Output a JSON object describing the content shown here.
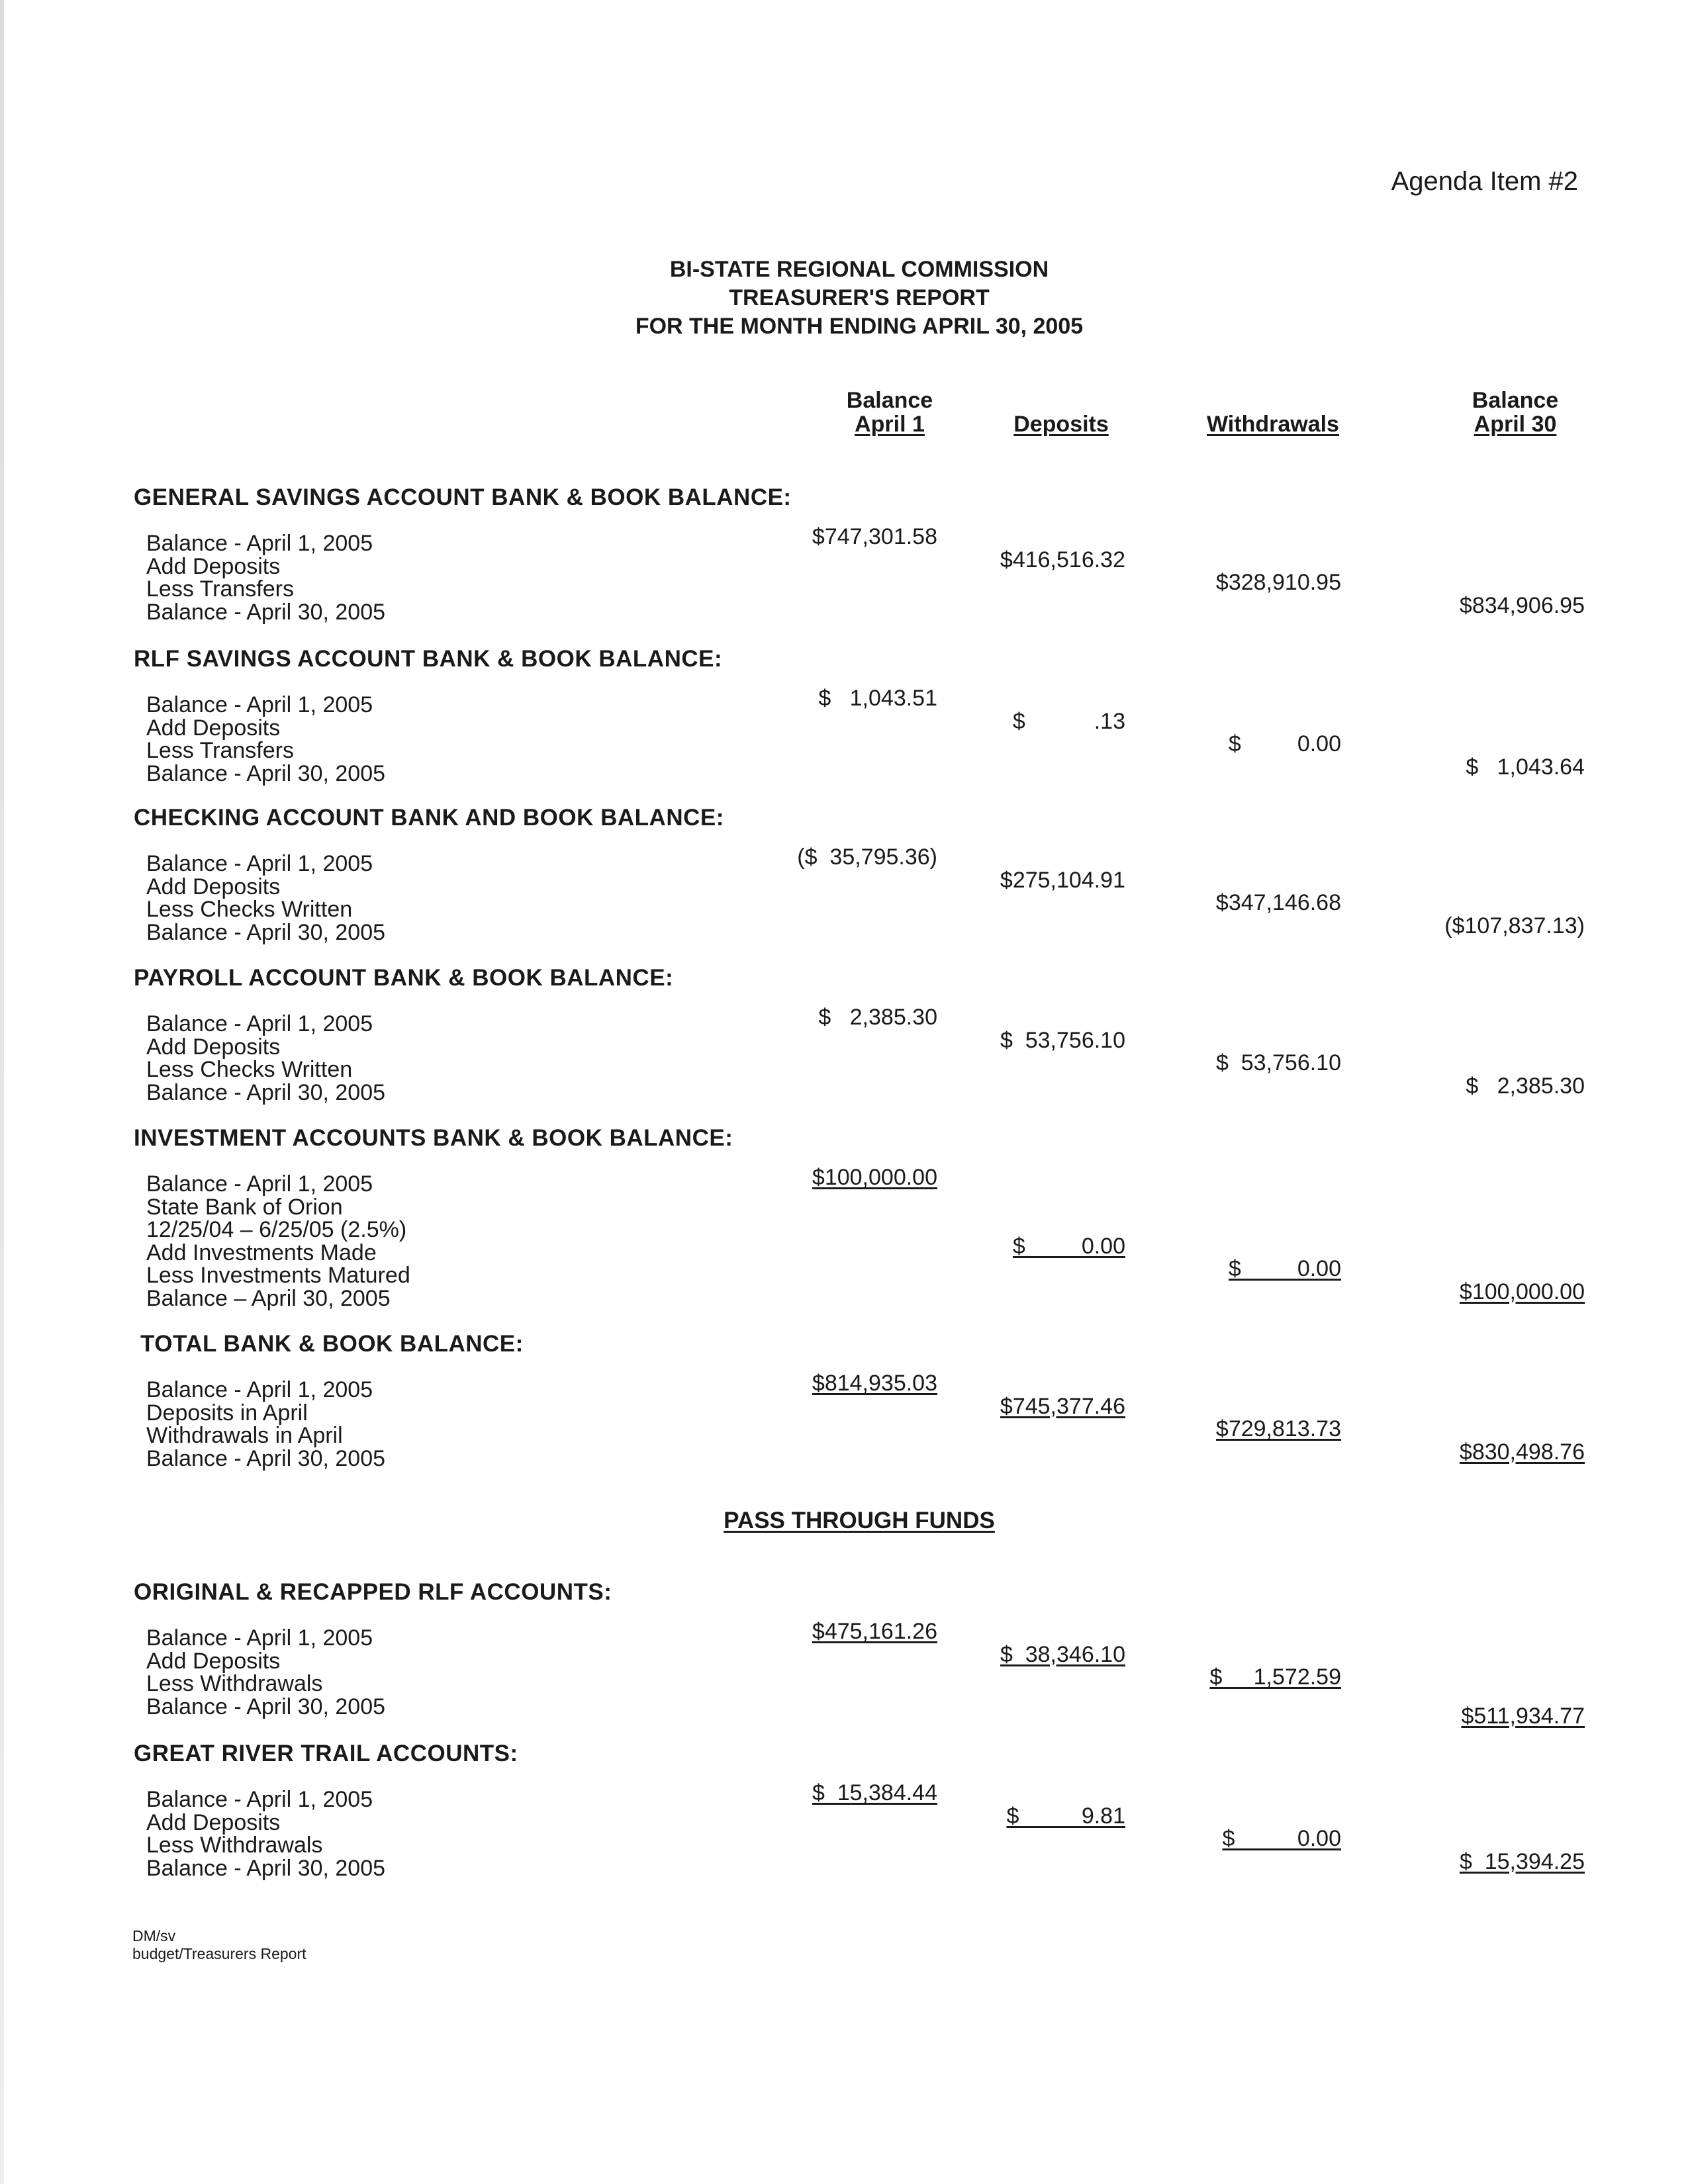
{
  "agenda_item": "Agenda Item #2",
  "title_lines": [
    "BI-STATE REGIONAL COMMISSION",
    "TREASURER'S REPORT",
    "FOR THE MONTH ENDING APRIL 30, 2005"
  ],
  "columns": [
    {
      "line1": "Balance",
      "line2": "April 1"
    },
    {
      "line1": "",
      "line2": "Deposits"
    },
    {
      "line1": "",
      "line2": "Withdrawals"
    },
    {
      "line1": "Balance",
      "line2": "April 30"
    }
  ],
  "sections": [
    {
      "heading": "GENERAL SAVINGS ACCOUNT BANK & BOOK BALANCE:",
      "lines": [
        "Balance - April 1, 2005",
        "Add Deposits",
        "Less Transfers",
        "Balance - April 30, 2005"
      ],
      "values": [
        {
          "text": "$747,301.58",
          "underline": false
        },
        {
          "text": "$416,516.32",
          "underline": false
        },
        {
          "text": "$328,910.95",
          "underline": false
        },
        {
          "text": "$834,906.95",
          "underline": false
        }
      ]
    },
    {
      "heading": "RLF SAVINGS ACCOUNT BANK & BOOK BALANCE:",
      "lines": [
        "Balance - April 1, 2005",
        "Add Deposits",
        "Less Transfers",
        "Balance - April 30, 2005"
      ],
      "values": [
        {
          "text": "$   1,043.51",
          "underline": false
        },
        {
          "text": "$           .13",
          "underline": false
        },
        {
          "text": "$         0.00",
          "underline": false
        },
        {
          "text": "$   1,043.64",
          "underline": false
        }
      ]
    },
    {
      "heading": "CHECKING ACCOUNT BANK AND BOOK BALANCE:",
      "lines": [
        "Balance - April 1, 2005",
        "Add Deposits",
        "Less Checks Written",
        "Balance - April 30, 2005"
      ],
      "values": [
        {
          "text": "($  35,795.36)",
          "underline": false
        },
        {
          "text": "$275,104.91",
          "underline": false
        },
        {
          "text": "$347,146.68",
          "underline": false
        },
        {
          "text": "($107,837.13)",
          "underline": false
        }
      ]
    },
    {
      "heading": "PAYROLL ACCOUNT BANK & BOOK BALANCE:",
      "lines": [
        "Balance - April 1, 2005",
        "Add Deposits",
        "Less Checks Written",
        "Balance - April 30, 2005"
      ],
      "values": [
        {
          "text": "$   2,385.30",
          "underline": false
        },
        {
          "text": "$  53,756.10",
          "underline": false
        },
        {
          "text": "$  53,756.10",
          "underline": false
        },
        {
          "text": "$   2,385.30",
          "underline": false
        }
      ]
    },
    {
      "heading": "INVESTMENT ACCOUNTS BANK & BOOK BALANCE:",
      "lines": [
        "Balance - April 1, 2005",
        "State Bank of Orion",
        "12/25/04 – 6/25/05 (2.5%)",
        "Add Investments Made",
        "Less Investments Matured",
        "Balance – April 30, 2005"
      ],
      "values": [
        {
          "text": "$100,000.00",
          "underline": true
        },
        {
          "text": "$         0.00",
          "underline": true
        },
        {
          "text": "$         0.00",
          "underline": true
        },
        {
          "text": "$100,000.00",
          "underline": true
        }
      ]
    },
    {
      "heading": "TOTAL BANK & BOOK BALANCE:",
      "lines": [
        "Balance - April 1, 2005",
        "Deposits in April",
        "Withdrawals in April",
        "Balance - April 30, 2005"
      ],
      "values": [
        {
          "text": "$814,935.03",
          "underline": true
        },
        {
          "text": "$745,377.46",
          "underline": true
        },
        {
          "text": "$729,813.73",
          "underline": true
        },
        {
          "text": "$830,498.76",
          "underline": true
        }
      ]
    },
    {
      "heading": "ORIGINAL & RECAPPED RLF ACCOUNTS:",
      "lines": [
        "Balance - April 1, 2005",
        "Add Deposits",
        "Less Withdrawals",
        "Balance - April 30, 2005"
      ],
      "values": [
        {
          "text": "$475,161.26",
          "underline": true
        },
        {
          "text": "$  38,346.10",
          "underline": true
        },
        {
          "text": "$     1,572.59",
          "underline": true
        },
        {
          "text": "$511,934.77",
          "underline": true
        }
      ]
    },
    {
      "heading": "GREAT RIVER TRAIL ACCOUNTS:",
      "lines": [
        "Balance - April 1, 2005",
        "Add Deposits",
        "Less Withdrawals",
        "Balance - April 30, 2005"
      ],
      "values": [
        {
          "text": "$  15,384.44",
          "underline": true
        },
        {
          "text": "$          9.81",
          "underline": true
        },
        {
          "text": "$          0.00",
          "underline": true
        },
        {
          "text": "$  15,394.25",
          "underline": true
        }
      ]
    }
  ],
  "pass_through_heading": "PASS THROUGH FUNDS",
  "footer": [
    "DM/sv",
    "budget/Treasurers Report"
  ]
}
